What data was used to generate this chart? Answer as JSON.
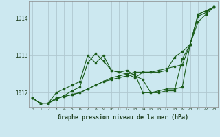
{
  "title": "Graphe pression niveau de la mer (hPa)",
  "bg_color": "#cce8f0",
  "grid_color": "#b0c8d0",
  "line_color": "#1a5c1a",
  "x_min": -0.5,
  "x_max": 23.5,
  "y_min": 1011.62,
  "y_max": 1014.45,
  "y_ticks": [
    1012,
    1013,
    1014
  ],
  "x_ticks": [
    0,
    1,
    2,
    3,
    4,
    5,
    6,
    7,
    8,
    9,
    10,
    11,
    12,
    13,
    14,
    15,
    16,
    17,
    18,
    19,
    20,
    21,
    22,
    23
  ],
  "series": [
    [
      1011.85,
      1011.72,
      1011.72,
      1011.82,
      1011.92,
      1012.05,
      1012.15,
      1012.8,
      1013.05,
      1012.85,
      1012.6,
      1012.55,
      1012.6,
      1012.45,
      1012.35,
      1012.0,
      1012.0,
      1012.05,
      1012.05,
      1012.9,
      1013.3,
      1014.05,
      1014.15,
      1014.3
    ],
    [
      1011.85,
      1011.72,
      1011.72,
      1012.0,
      1012.1,
      1012.2,
      1012.3,
      1013.0,
      1012.8,
      1013.0,
      1012.6,
      1012.55,
      1012.5,
      1012.4,
      1012.55,
      1012.55,
      1012.55,
      1012.6,
      1012.95,
      1013.1,
      1013.3,
      1013.9,
      1014.1,
      1014.3
    ],
    [
      1011.85,
      1011.72,
      1011.72,
      1011.85,
      1011.9,
      1011.95,
      1012.0,
      1012.1,
      1012.2,
      1012.3,
      1012.4,
      1012.45,
      1012.5,
      1012.55,
      1012.55,
      1012.55,
      1012.6,
      1012.65,
      1012.7,
      1012.75,
      1013.3,
      1014.1,
      1014.2,
      1014.3
    ],
    [
      1011.85,
      1011.72,
      1011.72,
      1011.85,
      1011.9,
      1011.95,
      1012.0,
      1012.1,
      1012.2,
      1012.3,
      1012.35,
      1012.4,
      1012.45,
      1012.5,
      1012.0,
      1012.0,
      1012.05,
      1012.1,
      1012.1,
      1012.15,
      1013.3,
      1014.1,
      1014.2,
      1014.3
    ]
  ]
}
